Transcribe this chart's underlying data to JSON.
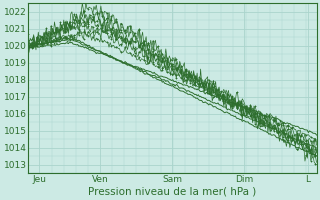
{
  "title": "",
  "xlabel": "Pression niveau de la mer( hPa )",
  "ylabel": "",
  "bg_color": "#cceae4",
  "grid_color": "#aad4cc",
  "line_color": "#2d6e2d",
  "ylim": [
    1012.5,
    1022.5
  ],
  "xlim": [
    0,
    100
  ],
  "yticks": [
    1013,
    1014,
    1015,
    1016,
    1017,
    1018,
    1019,
    1020,
    1021,
    1022
  ],
  "xtick_labels": [
    "Jeu",
    "Ven",
    "Sam",
    "Dim",
    "L"
  ],
  "xtick_pos": [
    4,
    25,
    50,
    75,
    97
  ]
}
